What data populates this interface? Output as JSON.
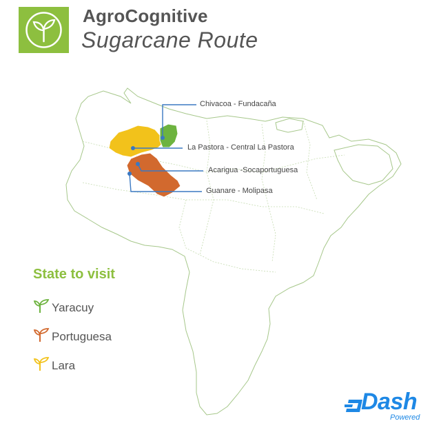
{
  "header": {
    "title": "AgroCognitive",
    "subtitle": "Sugarcane Route",
    "logo_icon": "sprout-icon",
    "accent_color": "#8dbf3f"
  },
  "map": {
    "country_outline_color": "#a6c78a",
    "regions": [
      {
        "name": "Yaracuy",
        "color": "#6db33f"
      },
      {
        "name": "Portuguesa",
        "color": "#d2692e"
      },
      {
        "name": "Lara",
        "color": "#f2c21b"
      }
    ],
    "callouts": [
      {
        "label": "Chivacoa - Fundacaña"
      },
      {
        "label": "La Pastora - Central La Pastora"
      },
      {
        "label": "Acarigua -Socaportuguesa"
      },
      {
        "label": "Guanare - Molipasa"
      }
    ],
    "callout_color": "#3a78c2"
  },
  "legend": {
    "title": "State to visit",
    "items": [
      {
        "label": "Yaracuy",
        "icon": "sprout-icon",
        "color": "#6db33f"
      },
      {
        "label": "Portuguesa",
        "icon": "sprout-icon",
        "color": "#d2692e"
      },
      {
        "label": "Lara",
        "icon": "sprout-icon",
        "color": "#f2c21b"
      }
    ]
  },
  "brand": {
    "name": "Dash",
    "tagline": "Powered",
    "color": "#1e88e5"
  }
}
